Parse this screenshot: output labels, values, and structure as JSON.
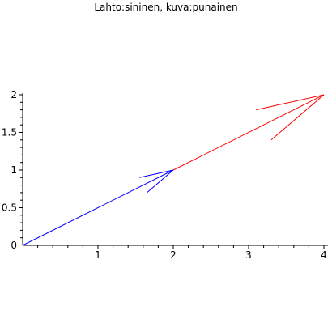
{
  "chart_data": {
    "type": "line",
    "title": "Lahto:sininen, kuva:punainen",
    "xlim": [
      0,
      4
    ],
    "ylim": [
      0,
      2
    ],
    "x_ticks": [
      "1",
      "2",
      "3",
      "4"
    ],
    "y_ticks": [
      "0",
      "0.5",
      "1",
      "1.5",
      "2"
    ],
    "grid": false,
    "series": [
      {
        "color": "#0000ff",
        "shaft": [
          [
            0,
            0
          ],
          [
            2,
            1
          ]
        ],
        "arrowhead": [
          [
            1.55,
            0.9
          ],
          [
            2,
            1
          ],
          [
            1.65,
            0.7
          ]
        ]
      },
      {
        "color": "#ff0000",
        "shaft": [
          [
            2,
            1
          ],
          [
            4,
            2
          ]
        ],
        "arrowhead": [
          [
            3.1,
            1.8
          ],
          [
            4,
            2
          ],
          [
            3.3,
            1.4
          ]
        ]
      }
    ]
  }
}
